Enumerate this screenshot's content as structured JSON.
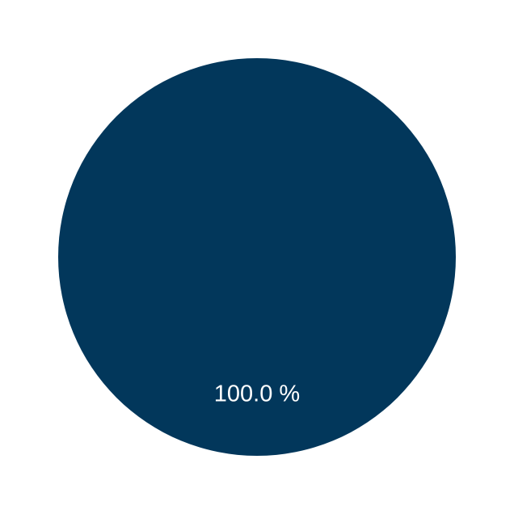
{
  "chart_data": {
    "type": "pie",
    "title": "",
    "slices": [
      {
        "value": 100.0,
        "label": "100.0 %",
        "color": "#02375B"
      }
    ],
    "legend": "none"
  }
}
